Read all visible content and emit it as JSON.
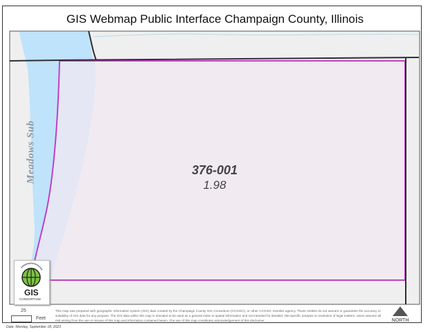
{
  "title": "GIS Webmap Public Interface Champaign County, Illinois",
  "map": {
    "parcel_id": "376-001",
    "parcel_acres": "1.98",
    "subdivision_label": "Meadows Sub",
    "colors": {
      "background": "#efefef",
      "water": "#bfe3fa",
      "parcel_fill": "#f2e8f1",
      "parcel_border": "#c23fc4",
      "road": "#2b2f33",
      "stream": "#b5dcef"
    }
  },
  "logo": {
    "text_top": "CHAMPAIGN COUNTY",
    "text_main": "GIS",
    "text_bottom": "CONSORTIUM"
  },
  "footer": {
    "scale_value": "25",
    "scale_unit": "Feet",
    "disclaimer": "This map was prepared with geographic information system (GIS) data created by the Champaign County GIS Consortium (CCGISC), or other CCGISC member agency. These entities do not warrant or guarantee the accuracy or suitability of GIS data for any purpose. The GIS data within this map is intended to be used as a general index to spatial information and not intended for detailed, site-specific analysis or resolution of legal matters. Users assume all risk arising from the use or misuse of this map and information contained herein. The use of this map constitutes acknowledgement of this disclaimer.",
    "north_label": "NORTH",
    "date": "Date: Monday, September 18, 2023"
  }
}
